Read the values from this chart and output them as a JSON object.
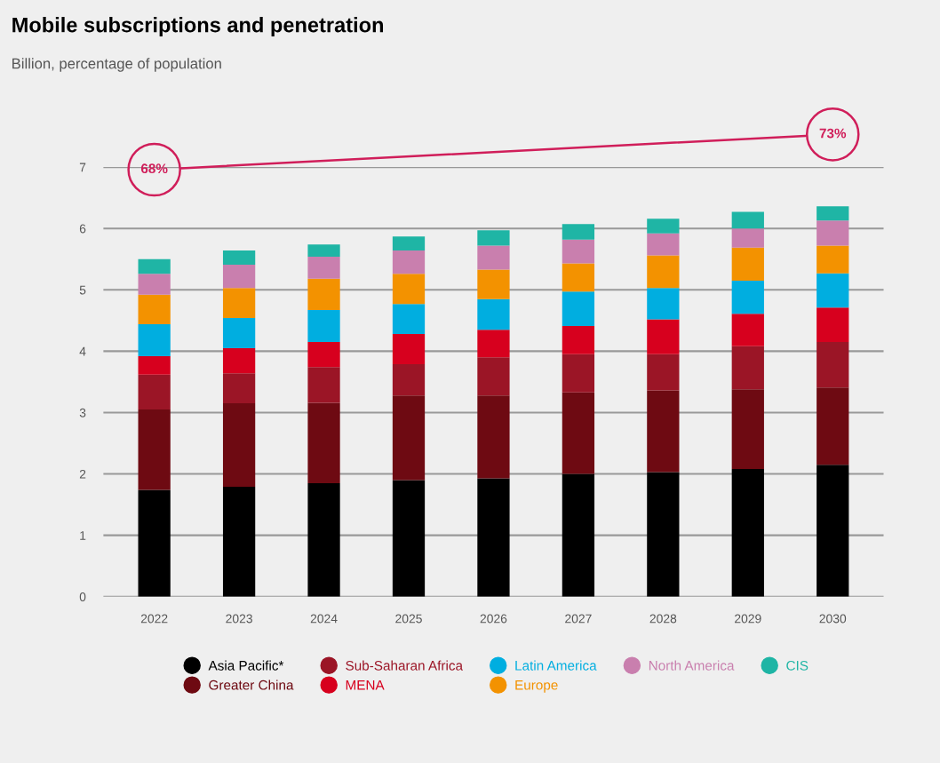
{
  "chart_data": {
    "type": "bar",
    "stacked": true,
    "title": "Mobile subscriptions and penetration",
    "subtitle": "Billion, percentage of population",
    "categories": [
      "2022",
      "2023",
      "2024",
      "2025",
      "2026",
      "2027",
      "2028",
      "2029",
      "2030"
    ],
    "series": [
      {
        "name": "Asia Pacific*",
        "color": "#000000",
        "values": [
          1.74,
          1.79,
          1.85,
          1.9,
          1.93,
          2.0,
          2.03,
          2.08,
          2.15
        ]
      },
      {
        "name": "Greater China",
        "color": "#6e0a12",
        "values": [
          1.31,
          1.36,
          1.31,
          1.38,
          1.35,
          1.33,
          1.33,
          1.3,
          1.26
        ]
      },
      {
        "name": "Sub-Saharan Africa",
        "color": "#9b1526",
        "values": [
          0.57,
          0.49,
          0.58,
          0.51,
          0.62,
          0.62,
          0.59,
          0.7,
          0.74
        ]
      },
      {
        "name": "MENA",
        "color": "#d7001e",
        "values": [
          0.3,
          0.41,
          0.41,
          0.49,
          0.45,
          0.46,
          0.57,
          0.53,
          0.56
        ]
      },
      {
        "name": "Latin America",
        "color": "#00aee0",
        "values": [
          0.52,
          0.49,
          0.52,
          0.49,
          0.5,
          0.56,
          0.51,
          0.54,
          0.56
        ]
      },
      {
        "name": "Europe",
        "color": "#f39200",
        "values": [
          0.48,
          0.49,
          0.51,
          0.49,
          0.48,
          0.46,
          0.53,
          0.54,
          0.45
        ]
      },
      {
        "name": "North America",
        "color": "#c97fae",
        "values": [
          0.34,
          0.38,
          0.36,
          0.38,
          0.39,
          0.39,
          0.36,
          0.31,
          0.41
        ]
      },
      {
        "name": "CIS",
        "color": "#1fb5a5",
        "values": [
          0.24,
          0.23,
          0.2,
          0.23,
          0.25,
          0.25,
          0.24,
          0.27,
          0.23
        ]
      }
    ],
    "annotations": [
      "68%",
      "73%"
    ],
    "ylim": [
      0,
      7
    ],
    "yticks": [
      0,
      1,
      2,
      3,
      4,
      5,
      6,
      7
    ],
    "grid": "y",
    "legend": "bottom"
  }
}
